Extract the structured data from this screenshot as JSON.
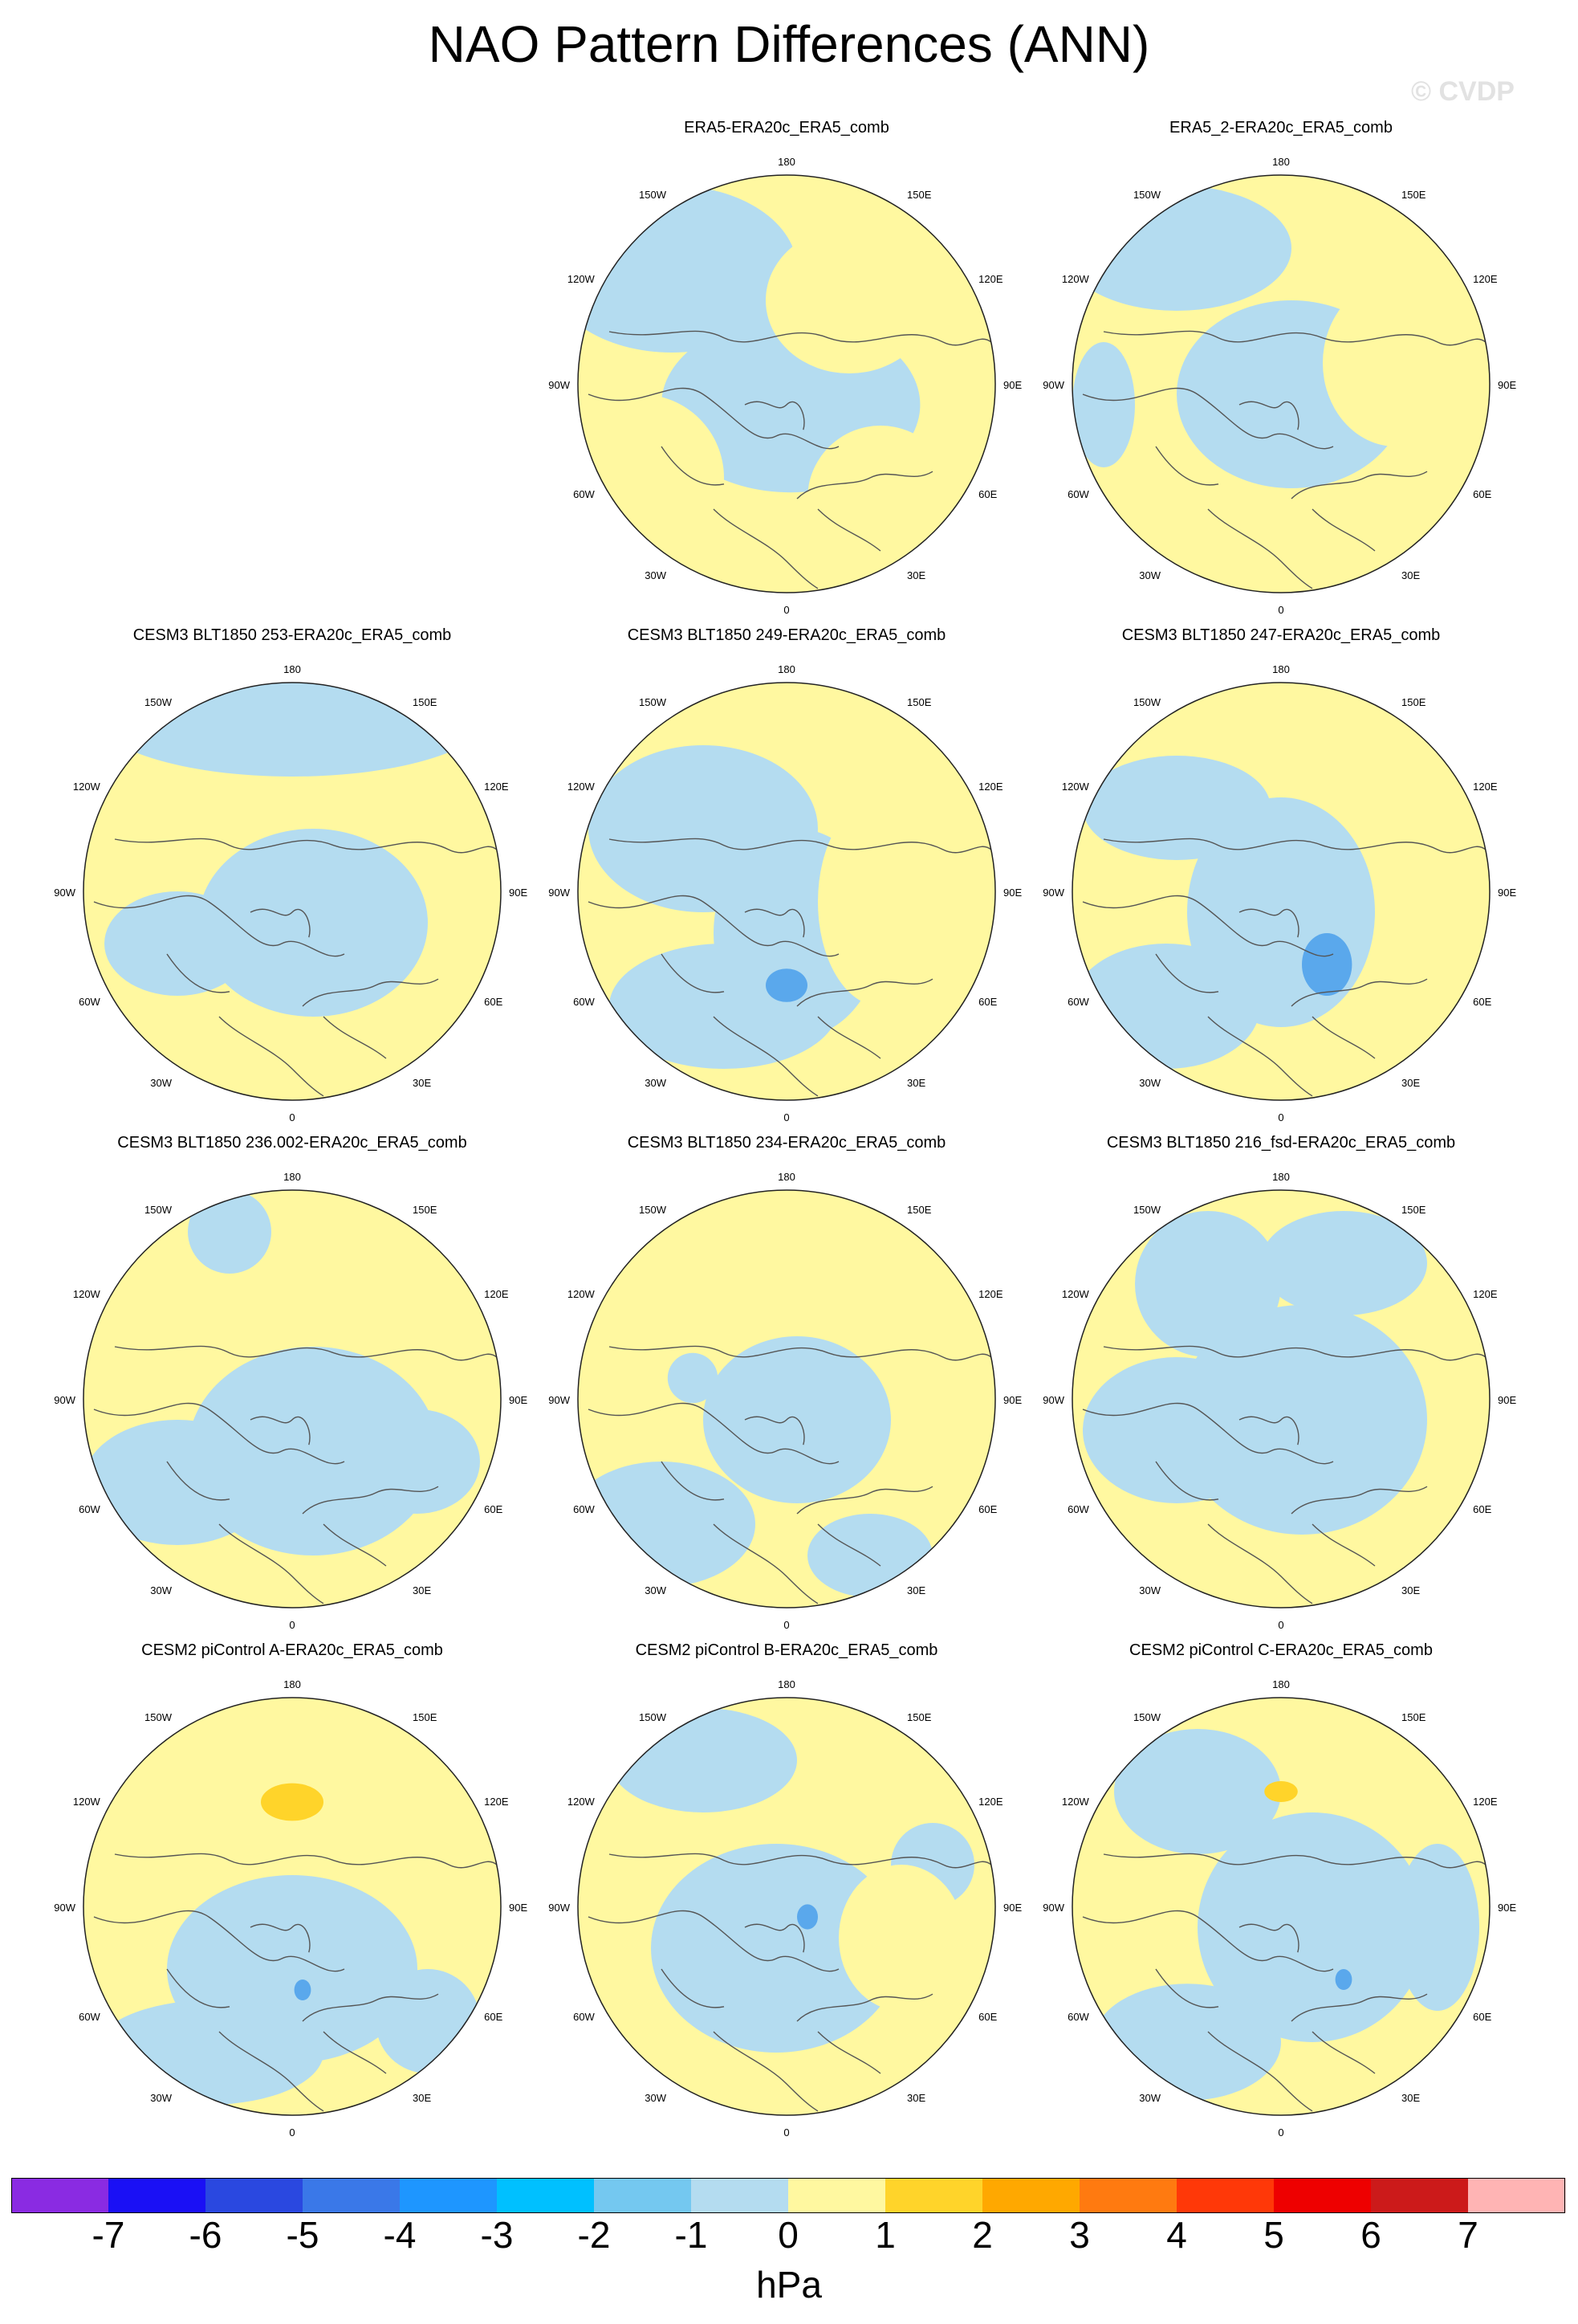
{
  "title": "NAO Pattern Differences (ANN)",
  "watermark": "© CVDP",
  "axis_labels": {
    "top": "180",
    "bottom": "0",
    "upper_left": "150W",
    "upper_right": "150E",
    "left_upper": "120W",
    "right_upper": "120E",
    "left": "90W",
    "right": "90E",
    "left_lower": "60W",
    "right_lower": "60E",
    "lower_left": "30W",
    "lower_right": "30E"
  },
  "panels": [
    {
      "title": "ERA5-ERA20c_ERA5_comb",
      "variant": 0
    },
    {
      "title": "ERA5_2-ERA20c_ERA5_comb",
      "variant": 1
    },
    {
      "title": "CESM3 BLT1850 253-ERA20c_ERA5_comb",
      "variant": 2
    },
    {
      "title": "CESM3 BLT1850 249-ERA20c_ERA5_comb",
      "variant": 3
    },
    {
      "title": "CESM3 BLT1850 247-ERA20c_ERA5_comb",
      "variant": 4
    },
    {
      "title": "CESM3 BLT1850 236.002-ERA20c_ERA5_comb",
      "variant": 5
    },
    {
      "title": "CESM3 BLT1850 234-ERA20c_ERA5_comb",
      "variant": 6
    },
    {
      "title": "CESM3 BLT1850 216_fsd-ERA20c_ERA5_comb",
      "variant": 7
    },
    {
      "title": "CESM2 piControl A-ERA20c_ERA5_comb",
      "variant": 8
    },
    {
      "title": "CESM2 piControl B-ERA20c_ERA5_comb",
      "variant": 9
    },
    {
      "title": "CESM2 piControl C-ERA20c_ERA5_comb",
      "variant": 10
    }
  ],
  "colorbar": {
    "colors": [
      "#8a2be2",
      "#1a10f5",
      "#2a48e0",
      "#3a78e8",
      "#1e96ff",
      "#00c0ff",
      "#74c8f0",
      "#b4dcf0",
      "#fff8a0",
      "#ffd42a",
      "#ffa800",
      "#ff7a10",
      "#ff3808",
      "#ee0000",
      "#cc1a1a",
      "#ffb4b4"
    ],
    "labels": [
      "-7",
      "-6",
      "-5",
      "-4",
      "-3",
      "-2",
      "-1",
      "0",
      "1",
      "2",
      "3",
      "4",
      "5",
      "6",
      "7"
    ],
    "units": "hPa"
  }
}
